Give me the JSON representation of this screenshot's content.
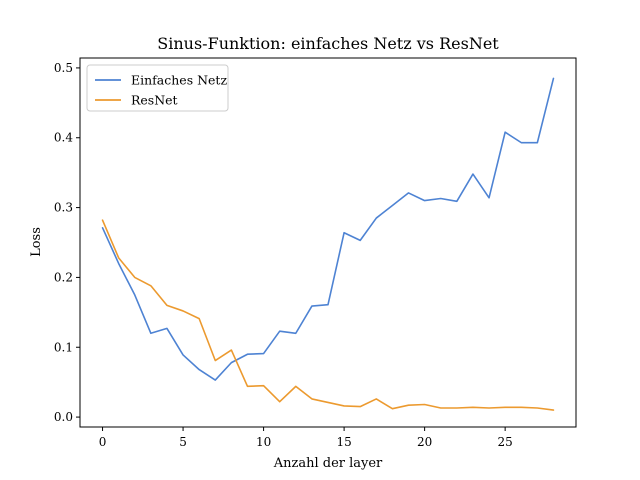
{
  "chart_data": {
    "type": "line",
    "title": "Sinus-Funktion: einfaches Netz vs ResNet",
    "xlabel": "Anzahl der layer",
    "ylabel": "Loss",
    "xlim": [
      -1.4,
      29.4
    ],
    "ylim": [
      -0.0142,
      0.5142
    ],
    "xticks": [
      0,
      5,
      10,
      15,
      20,
      25
    ],
    "yticks": [
      0.0,
      0.1,
      0.2,
      0.3,
      0.4,
      0.5
    ],
    "ytick_labels": [
      "0.0",
      "0.1",
      "0.2",
      "0.3",
      "0.4",
      "0.5"
    ],
    "grid": false,
    "legend_position": "top-left",
    "x": [
      0,
      1,
      2,
      3,
      4,
      5,
      6,
      7,
      8,
      9,
      10,
      11,
      12,
      13,
      14,
      15,
      16,
      17,
      18,
      19,
      20,
      21,
      22,
      23,
      24,
      25,
      26,
      27,
      28
    ],
    "series": [
      {
        "name": "Einfaches Netz",
        "color": "#4e83d3",
        "values": [
          0.271,
          0.22,
          0.175,
          0.12,
          0.127,
          0.089,
          0.068,
          0.053,
          0.078,
          0.09,
          0.091,
          0.123,
          0.12,
          0.159,
          0.161,
          0.264,
          0.253,
          0.285,
          0.303,
          0.321,
          0.31,
          0.313,
          0.309,
          0.348,
          0.314,
          0.408,
          0.393,
          0.393,
          0.485
        ]
      },
      {
        "name": "ResNet",
        "color": "#ec9a2f",
        "values": [
          0.282,
          0.228,
          0.2,
          0.188,
          0.16,
          0.152,
          0.141,
          0.081,
          0.096,
          0.044,
          0.045,
          0.022,
          0.044,
          0.026,
          0.021,
          0.016,
          0.015,
          0.026,
          0.012,
          0.017,
          0.018,
          0.013,
          0.013,
          0.014,
          0.013,
          0.014,
          0.014,
          0.013,
          0.01
        ]
      }
    ]
  }
}
